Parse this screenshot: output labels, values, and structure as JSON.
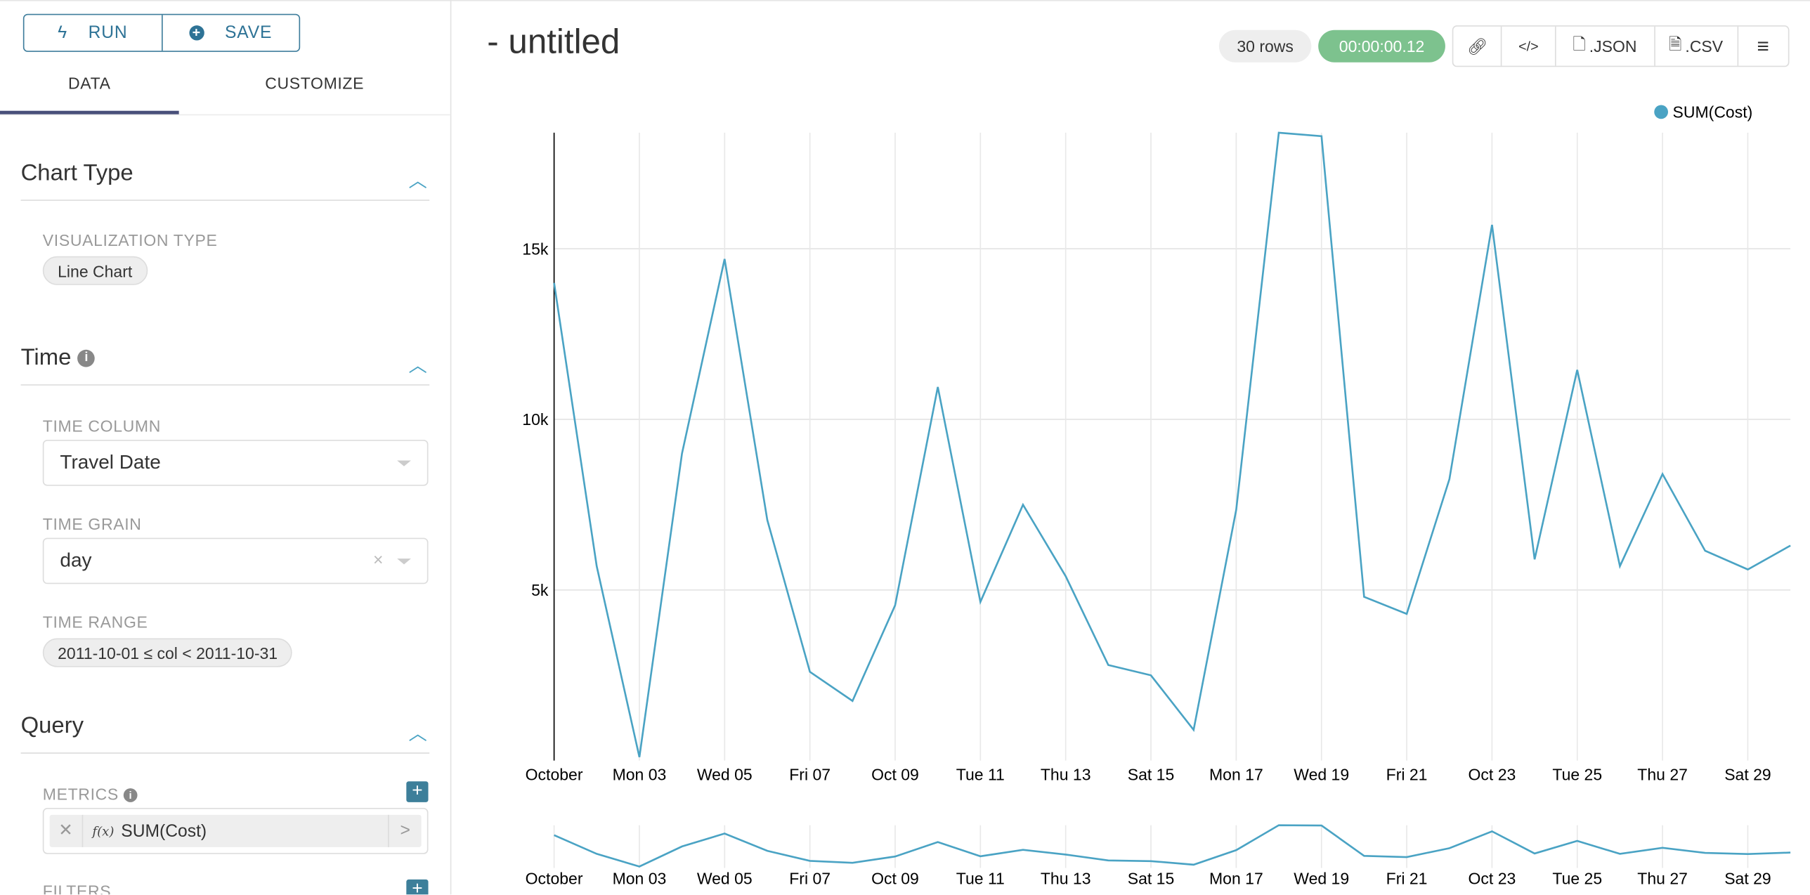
{
  "toolbar": {
    "run_label": "RUN",
    "save_label": "SAVE"
  },
  "tabs": [
    {
      "label": "DATA",
      "active": true
    },
    {
      "label": "CUSTOMIZE",
      "active": false
    }
  ],
  "sections": {
    "chart_type": {
      "title": "Chart Type",
      "viz_label": "VISUALIZATION TYPE",
      "viz_value": "Line Chart"
    },
    "time": {
      "title": "Time",
      "time_column_label": "TIME COLUMN",
      "time_column_value": "Travel Date",
      "time_grain_label": "TIME GRAIN",
      "time_grain_value": "day",
      "time_range_label": "TIME RANGE",
      "time_range_value": "2011-10-01 ≤ col < 2011-10-31"
    },
    "query": {
      "title": "Query",
      "metrics_label": "METRICS",
      "metric_value": "SUM(Cost)",
      "metric_fx": "f(x)",
      "filters_label": "FILTERS"
    }
  },
  "header": {
    "title": "- untitled",
    "rows_badge": "30 rows",
    "timer_badge": "00:00:00.12",
    "json_label": ".JSON",
    "csv_label": ".CSV"
  },
  "colors": {
    "accent": "#3e7d9c",
    "line": "#4aa3c4",
    "timer": "#7dc28e",
    "tab_underline": "#484f7a"
  },
  "icons": [
    "bolt-icon",
    "plus-circle-icon",
    "chevron-up-icon",
    "info-icon",
    "caret-down-icon",
    "clear-icon",
    "link-icon",
    "code-icon",
    "file-code-icon",
    "file-text-icon",
    "menu-icon",
    "plus-icon",
    "close-icon",
    "chevron-right-icon"
  ],
  "chart_data": {
    "type": "line",
    "legend": "top-right",
    "grid": true,
    "series": [
      {
        "name": "SUM(Cost)",
        "x": [
          "2011-10-01",
          "2011-10-02",
          "2011-10-03",
          "2011-10-04",
          "2011-10-05",
          "2011-10-06",
          "2011-10-07",
          "2011-10-08",
          "2011-10-09",
          "2011-10-10",
          "2011-10-11",
          "2011-10-12",
          "2011-10-13",
          "2011-10-14",
          "2011-10-15",
          "2011-10-16",
          "2011-10-17",
          "2011-10-18",
          "2011-10-19",
          "2011-10-20",
          "2011-10-21",
          "2011-10-22",
          "2011-10-23",
          "2011-10-24",
          "2011-10-25",
          "2011-10-26",
          "2011-10-27",
          "2011-10-28",
          "2011-10-29",
          "2011-10-30"
        ],
        "values": [
          14000,
          5700,
          100,
          9000,
          14700,
          7050,
          2600,
          1750,
          4550,
          10950,
          4650,
          7500,
          5400,
          2800,
          2500,
          900,
          7350,
          18400,
          18300,
          4800,
          4300,
          8250,
          15700,
          5900,
          11450,
          5700,
          8400,
          6150,
          5600,
          6300
        ]
      }
    ],
    "ylim": [
      0,
      18400
    ],
    "yticks": [
      {
        "v": 5000,
        "label": "5k"
      },
      {
        "v": 10000,
        "label": "10k"
      },
      {
        "v": 15000,
        "label": "15k"
      }
    ],
    "xticks": [
      "October",
      "Mon 03",
      "Wed 05",
      "Fri 07",
      "Oct 09",
      "Tue 11",
      "Thu 13",
      "Sat 15",
      "Mon 17",
      "Wed 19",
      "Fri 21",
      "Oct 23",
      "Tue 25",
      "Thu 27",
      "Sat 29"
    ]
  }
}
